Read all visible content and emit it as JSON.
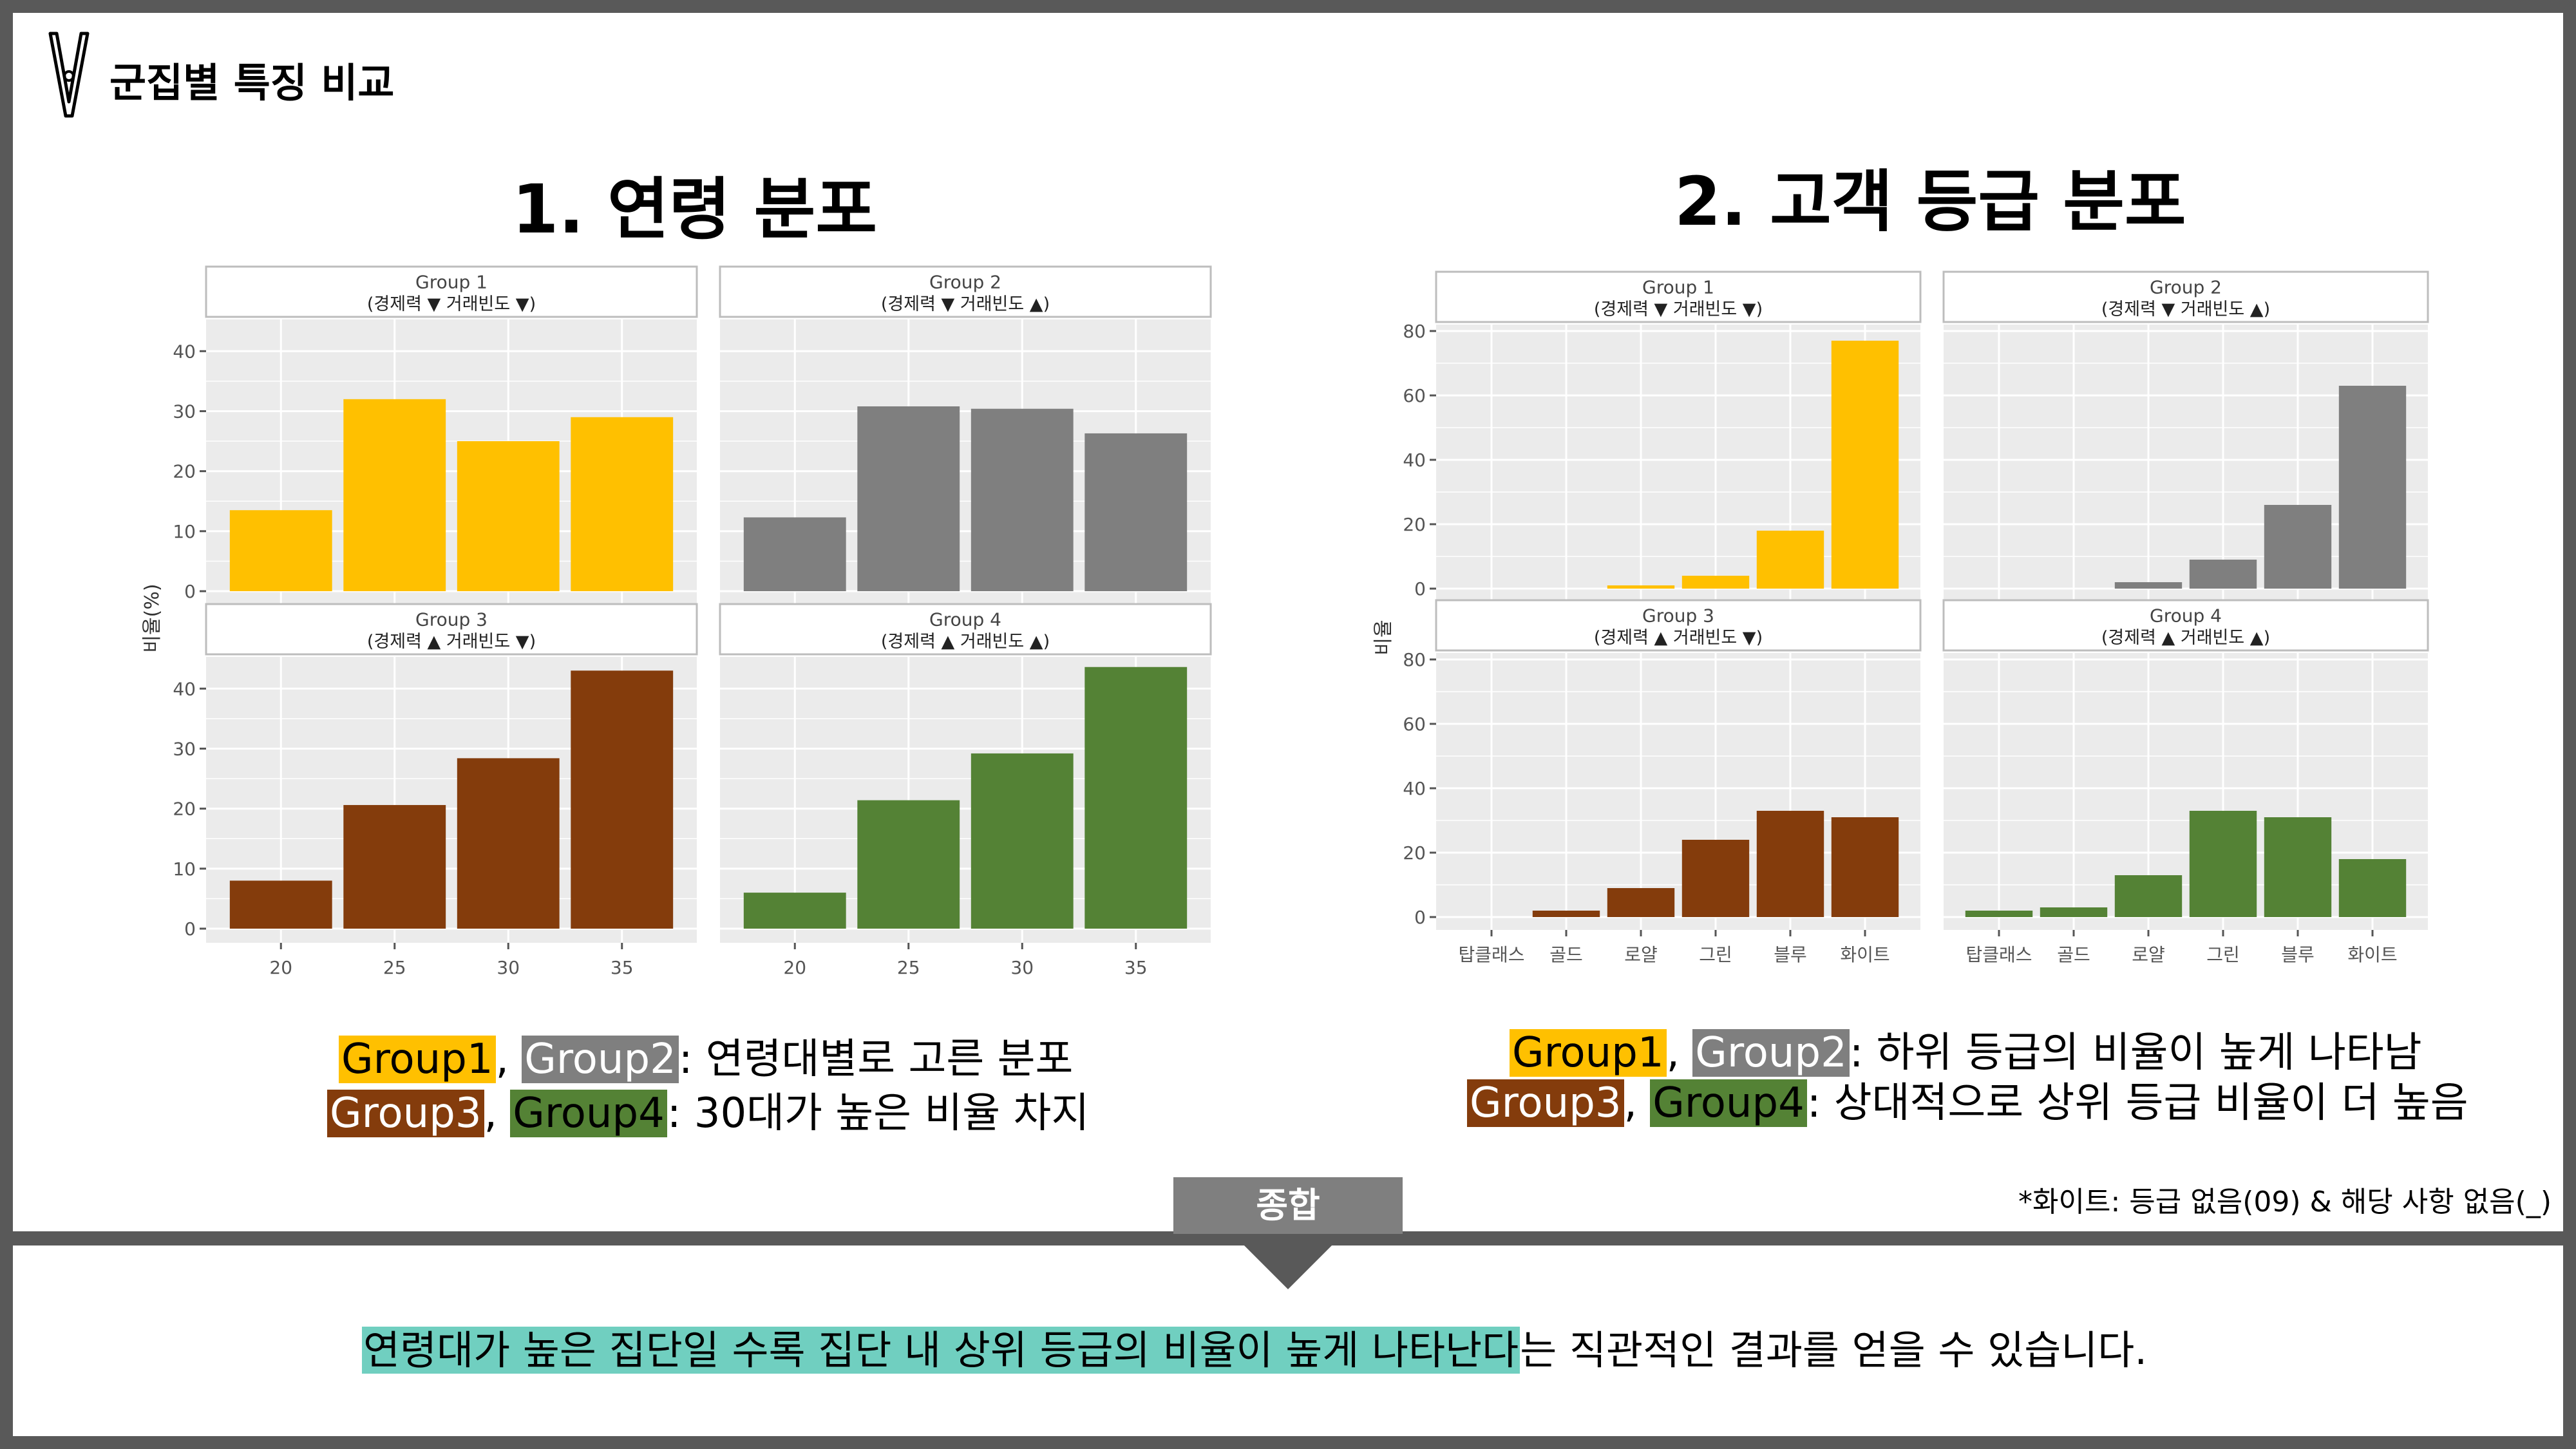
{
  "header": {
    "title": "군집별 특징 비교",
    "icon": "clothespin-icon"
  },
  "colors": {
    "group1": "#FFC000",
    "group2": "#7F7F7F",
    "group3": "#843C0C",
    "group4": "#548235",
    "frame": "#595959",
    "highlight": "#70CFC0"
  },
  "section1": {
    "title": "1. 연령 분포",
    "caption_line1": {
      "g1": "Group1",
      "sep": ", ",
      "g2": "Group2",
      "text": ": 연령대별로 고른 분포"
    },
    "caption_line2": {
      "g3": "Group3",
      "sep": ", ",
      "g4": "Group4",
      "text": ": 30대가 높은 비율 차지"
    }
  },
  "section2": {
    "title": "2. 고객 등급 분포",
    "caption_line1": {
      "g1": "Group1",
      "sep": ", ",
      "g2": "Group2",
      "text": ": 하위 등급의 비율이 높게 나타남"
    },
    "caption_line2": {
      "g3": "Group3",
      "sep": ", ",
      "g4": "Group4",
      "text": ": 상대적으로 상위 등급 비율이 더 높음"
    }
  },
  "note": "*화이트: 등급 없음(09) &  해당 사항 없음(_)",
  "summary": {
    "label": "종합",
    "highlight": "연령대가 높은 집단일 수록 집단 내 상위 등급의 비율이 높게 나타난다",
    "rest": "는 직관적인 결과를 얻을 수 있습니다."
  },
  "chart_data": [
    {
      "type": "bar",
      "ylabel": "비율(%)",
      "categories": [
        "20",
        "25",
        "30",
        "35"
      ],
      "ylim": [
        0,
        44
      ],
      "yticks": [
        0,
        10,
        20,
        30,
        40
      ],
      "grid": true,
      "panels": [
        {
          "name": "Group 1",
          "subtitle": "(경제력 ▼ 거래빈도 ▼)",
          "color": "#FFC000",
          "values": [
            13.5,
            32,
            25,
            29
          ]
        },
        {
          "name": "Group 2",
          "subtitle": "(경제력 ▼ 거래빈도 ▲)",
          "color": "#7F7F7F",
          "values": [
            12.3,
            30.8,
            30.4,
            26.3
          ]
        },
        {
          "name": "Group 3",
          "subtitle": "(경제력 ▲ 거래빈도 ▼)",
          "color": "#843C0C",
          "values": [
            8,
            20.6,
            28.4,
            43
          ]
        },
        {
          "name": "Group 4",
          "subtitle": "(경제력 ▲ 거래빈도 ▲)",
          "color": "#548235",
          "values": [
            6,
            21.4,
            29.2,
            43.6
          ]
        }
      ]
    },
    {
      "type": "bar",
      "ylabel": "비율",
      "categories": [
        "탑클래스",
        "골드",
        "로얄",
        "그린",
        "블루",
        "화이트"
      ],
      "ylim": [
        0,
        80
      ],
      "yticks": [
        0,
        20,
        40,
        60,
        80
      ],
      "grid": true,
      "panels": [
        {
          "name": "Group 1",
          "subtitle": "(경제력 ▼ 거래빈도 ▼)",
          "color": "#FFC000",
          "values": [
            0,
            0,
            1,
            4,
            18,
            77
          ]
        },
        {
          "name": "Group 2",
          "subtitle": "(경제력 ▼ 거래빈도 ▲)",
          "color": "#7F7F7F",
          "values": [
            0,
            0,
            2,
            9,
            26,
            63
          ]
        },
        {
          "name": "Group 3",
          "subtitle": "(경제력 ▲ 거래빈도 ▼)",
          "color": "#843C0C",
          "values": [
            0,
            2,
            9,
            24,
            33,
            31
          ]
        },
        {
          "name": "Group 4",
          "subtitle": "(경제력 ▲ 거래빈도 ▲)",
          "color": "#548235",
          "values": [
            2,
            3,
            13,
            33,
            31,
            18
          ]
        }
      ]
    }
  ]
}
